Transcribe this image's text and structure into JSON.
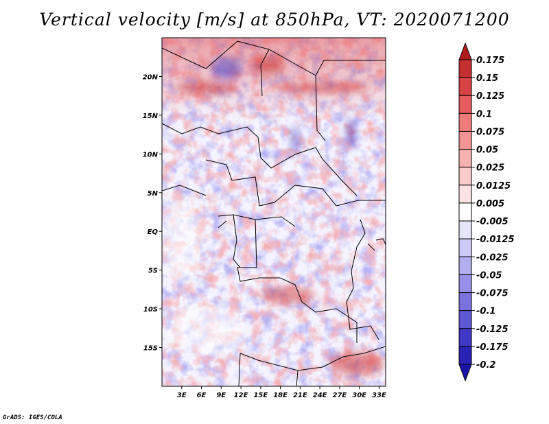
{
  "title": "Vertical velocity [m/s] at 850hPa, VT: 2020071200",
  "credit": "GrADS: IGES/COLA",
  "map": {
    "variable": "Vertical velocity",
    "units": "m/s",
    "level": "850hPa",
    "valid_time": "2020071200",
    "lon_range": [
      0,
      34
    ],
    "lat_range": [
      -20,
      25
    ],
    "lon_ticks": [
      {
        "value": 3,
        "label": "3E"
      },
      {
        "value": 6,
        "label": "6E"
      },
      {
        "value": 9,
        "label": "9E"
      },
      {
        "value": 12,
        "label": "12E"
      },
      {
        "value": 15,
        "label": "15E"
      },
      {
        "value": 18,
        "label": "18E"
      },
      {
        "value": 21,
        "label": "21E"
      },
      {
        "value": 24,
        "label": "24E"
      },
      {
        "value": 27,
        "label": "27E"
      },
      {
        "value": 30,
        "label": "30E"
      },
      {
        "value": 33,
        "label": "33E"
      }
    ],
    "lat_ticks": [
      {
        "value": 20,
        "label": "20N"
      },
      {
        "value": 15,
        "label": "15N"
      },
      {
        "value": 10,
        "label": "10N"
      },
      {
        "value": 5,
        "label": "5N"
      },
      {
        "value": 0,
        "label": "EQ"
      },
      {
        "value": -5,
        "label": "5S"
      },
      {
        "value": -10,
        "label": "10S"
      },
      {
        "value": -15,
        "label": "15S"
      }
    ]
  },
  "colorbar": {
    "levels": [
      "0.175",
      "0.15",
      "0.125",
      "0.1",
      "0.075",
      "0.05",
      "0.025",
      "0.0125",
      "0.005",
      "-0.005",
      "-0.0125",
      "-0.025",
      "-0.05",
      "-0.075",
      "-0.1",
      "-0.125",
      "-0.175",
      "-0.2"
    ],
    "colors": [
      "#b01c1c",
      "#c52f2f",
      "#d84444",
      "#e65c5c",
      "#ee7a7a",
      "#f49595",
      "#f8b1b1",
      "#fbcaca",
      "#fde3e3",
      "#ffffff",
      "#e6e6fb",
      "#cccaf6",
      "#b2aff0",
      "#9690e8",
      "#7a73df",
      "#5f58d4",
      "#4038c4",
      "#2a22b4",
      "#1c14a6"
    ]
  }
}
